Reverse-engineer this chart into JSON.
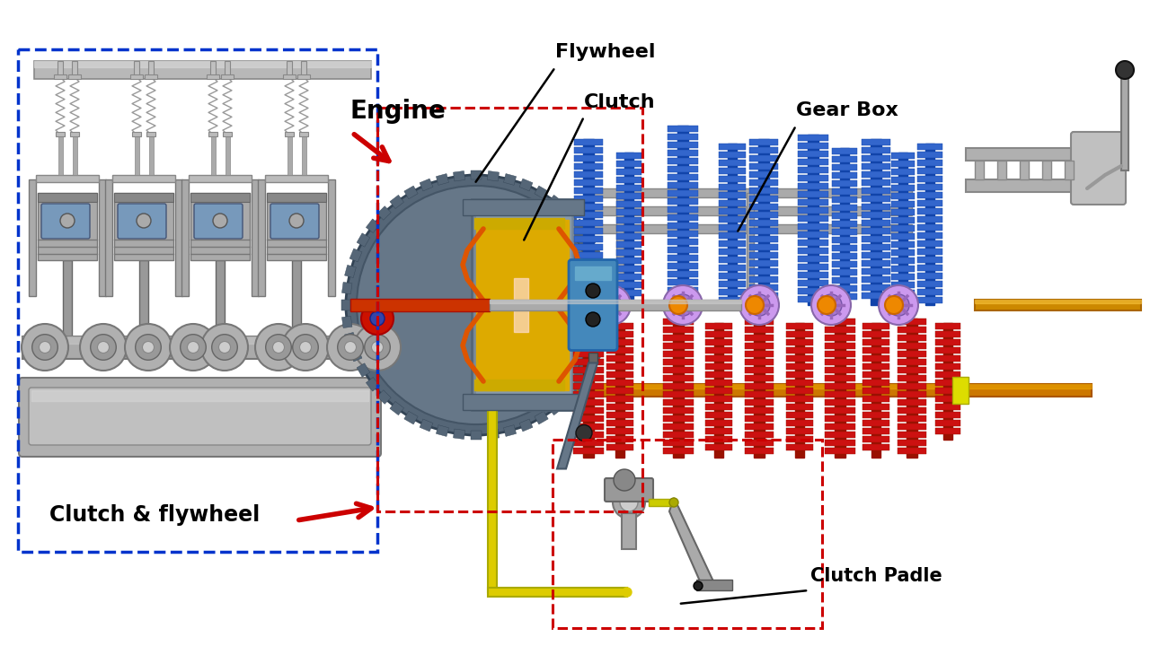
{
  "background_color": "#ffffff",
  "labels": {
    "engine": "Engine",
    "flywheel": "Flywheel",
    "clutch": "Clutch",
    "gear_box": "Gear Box",
    "clutch_flywheel": "Clutch & flywheel",
    "clutch_padle": "Clutch Padle"
  },
  "colors": {
    "blue_box": "#0033cc",
    "red_box": "#cc0000",
    "engine_arrow": "#cc0000",
    "clutch_arrow": "#cc0000",
    "gear_blue": "#3366cc",
    "gear_blue2": "#2255bb",
    "gear_red": "#cc1111",
    "gear_red2": "#aa0000",
    "shaft_orange": "#cc7700",
    "shaft_brown": "#aa4400",
    "shaft_gray": "#999999",
    "shaft_silver": "#bbbbbb",
    "flywheel_dark": "#446677",
    "flywheel_mid": "#557788",
    "flywheel_gold": "#ddaa00",
    "flywheel_orange": "#ee7700",
    "flywheel_red": "#dd2200",
    "clutch_blue": "#4488bb",
    "clutch_blue2": "#3377aa",
    "piston_gray": "#aaaaaa",
    "piston_dark": "#888888",
    "piston_blue": "#6688aa",
    "spring_gray": "#999999",
    "crankshaft_gray": "#aaaaaa",
    "purple": "#aa88cc",
    "purple2": "#cc99ee",
    "yellow": "#dddd00",
    "teal_dark": "#336677",
    "black": "#000000",
    "dark_gray": "#555555",
    "silver": "#c0c0c0",
    "light_gray": "#dddddd"
  }
}
